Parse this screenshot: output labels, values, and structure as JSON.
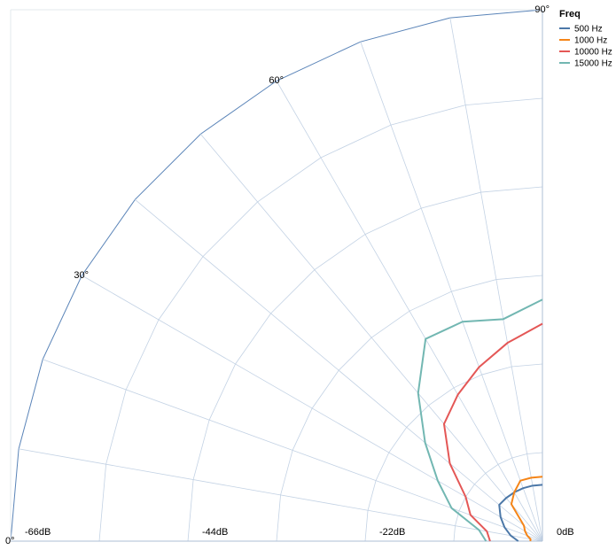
{
  "chart_data": {
    "type": "line",
    "subtype": "polar-quadrant",
    "title": "",
    "angle_ticks": [
      "0°",
      "30°",
      "60°",
      "90°"
    ],
    "angles_deg": [
      0,
      10,
      20,
      30,
      40,
      50,
      60,
      70,
      80,
      90
    ],
    "radius_ticks": [
      "0dB",
      "-22dB",
      "-44dB",
      "-66dB"
    ],
    "radius_tick_values": [
      0,
      -22,
      -44,
      -66
    ],
    "rlim": [
      -66,
      0
    ],
    "r_step_minor": 11,
    "legend": {
      "title": "Freq",
      "position": "top-right"
    },
    "series": [
      {
        "name": "500 Hz",
        "color": "#4c78a8",
        "values": [
          -3,
          -4,
          -5,
          -6,
          -7,
          -7,
          -7,
          -7,
          -7,
          -7
        ]
      },
      {
        "name": "1000 Hz",
        "color": "#f58518",
        "values": [
          -1.5,
          -1.5,
          -2,
          -2.5,
          -3,
          -6,
          -7,
          -8,
          -8,
          -8
        ]
      },
      {
        "name": "10000 Hz",
        "color": "#e45756",
        "values": [
          -6.5,
          -7,
          -9.5,
          -11,
          -15,
          -19,
          -21,
          -23,
          -25,
          -27
        ]
      },
      {
        "name": "15000 Hz",
        "color": "#72b7b2",
        "values": [
          -7,
          -8,
          -12,
          -15,
          -19,
          -24,
          -29,
          -29,
          -28,
          -30
        ]
      }
    ]
  }
}
